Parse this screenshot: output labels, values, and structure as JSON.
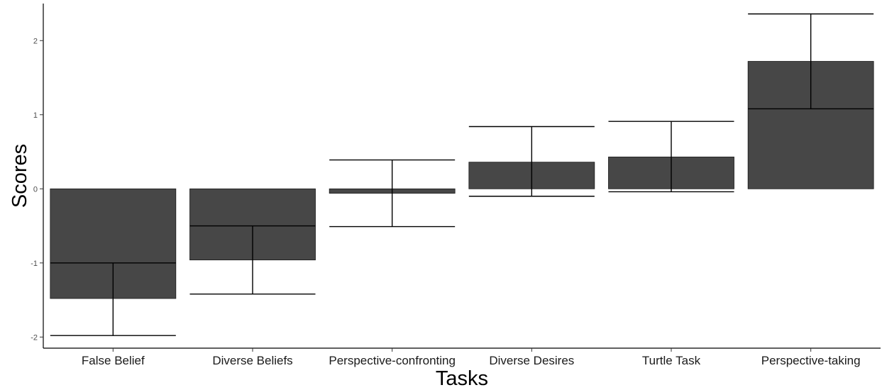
{
  "chart_data": {
    "type": "bar",
    "title": "",
    "xlabel": "Tasks",
    "ylabel": "Scores",
    "categories": [
      "False Belief",
      "Diverse Beliefs",
      "Perspective-confronting",
      "Diverse Desires",
      "Turtle Task",
      "Perspective-taking"
    ],
    "values": [
      -1.48,
      -0.96,
      -0.06,
      0.36,
      0.43,
      1.72
    ],
    "error_low": [
      -1.98,
      -1.42,
      -0.51,
      -0.1,
      -0.04,
      1.08
    ],
    "error_high": [
      -1.0,
      -0.5,
      0.39,
      0.84,
      0.91,
      2.36
    ],
    "ylim": [
      -2.15,
      2.5
    ],
    "yticks": [
      -2,
      -1,
      0,
      1,
      2
    ],
    "grid": false,
    "bar_color": "#474747",
    "legend": "none"
  }
}
